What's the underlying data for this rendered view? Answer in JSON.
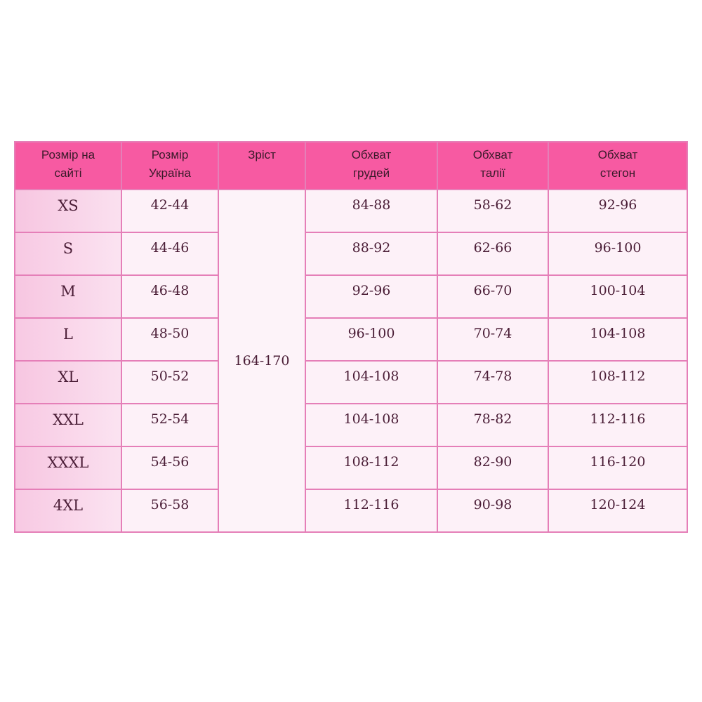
{
  "headers": [
    "Розмір на сайті",
    "Розмір Україна",
    "Зріст",
    "Обхват грудей",
    "Обхват талії",
    "Обхват стегон"
  ],
  "header_lines": [
    [
      "Розмір на",
      "сайті"
    ],
    [
      "Розмір",
      "Україна"
    ],
    [
      "Зріст"
    ],
    [
      "Обхват",
      "грудей"
    ],
    [
      "Обхват",
      "талії"
    ],
    [
      "Обхват",
      "стегон"
    ]
  ],
  "height": "164-170",
  "rows": [
    {
      "size": "XS",
      "ua": "42-44",
      "chest": "84-88",
      "waist": "58-62",
      "hips": "92-96"
    },
    {
      "size": "S",
      "ua": "44-46",
      "chest": "88-92",
      "waist": "62-66",
      "hips": "96-100"
    },
    {
      "size": "M",
      "ua": "46-48",
      "chest": "92-96",
      "waist": "66-70",
      "hips": "100-104"
    },
    {
      "size": "L",
      "ua": "48-50",
      "chest": "96-100",
      "waist": "70-74",
      "hips": "104-108"
    },
    {
      "size": "XL",
      "ua": "50-52",
      "chest": "104-108",
      "waist": "74-78",
      "hips": "108-112"
    },
    {
      "size": "XXL",
      "ua": "52-54",
      "chest": "104-108",
      "waist": "78-82",
      "hips": "112-116"
    },
    {
      "size": "XXXL",
      "ua": "54-56",
      "chest": "108-112",
      "waist": "82-90",
      "hips": "116-120"
    },
    {
      "size": "4XL",
      "ua": "56-58",
      "chest": "112-116",
      "waist": "90-98",
      "hips": "120-124"
    }
  ],
  "colors": {
    "header": "#f75aa2",
    "border": "#e57fb8",
    "text": "#4a1d36"
  }
}
